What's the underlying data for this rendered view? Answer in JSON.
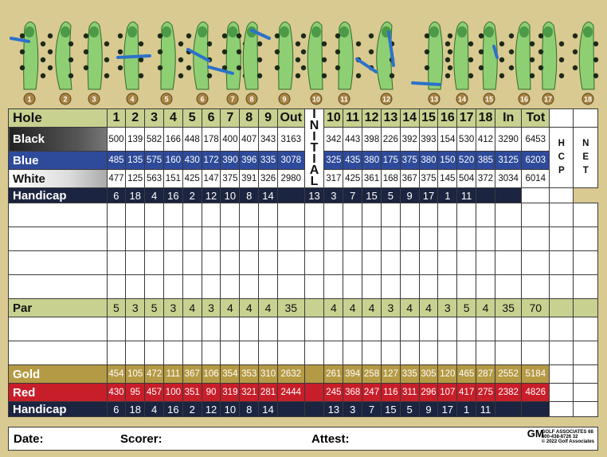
{
  "hole_map_numbers": [
    "1",
    "2",
    "3",
    "4",
    "5",
    "6",
    "7",
    "8",
    "9",
    "10",
    "11",
    "12",
    "13",
    "14",
    "15",
    "16",
    "17",
    "18"
  ],
  "header": {
    "label": "Hole",
    "holes_front": [
      "1",
      "2",
      "3",
      "4",
      "5",
      "6",
      "7",
      "8",
      "9"
    ],
    "out": "Out",
    "holes_back": [
      "10",
      "11",
      "12",
      "13",
      "14",
      "15",
      "16",
      "17",
      "18"
    ],
    "in": "In",
    "tot": "Tot"
  },
  "initial_label": [
    "I",
    "N",
    "I",
    "T",
    "I",
    "A",
    "L"
  ],
  "hcp_col_label": [
    "H",
    "C",
    "P"
  ],
  "net_col_label": [
    "N",
    "E",
    "T"
  ],
  "black": {
    "label": "Black",
    "front": [
      "500",
      "139",
      "582",
      "166",
      "448",
      "178",
      "400",
      "407",
      "343"
    ],
    "out": "3163",
    "back": [
      "342",
      "443",
      "398",
      "226",
      "392",
      "393",
      "154",
      "530",
      "412"
    ],
    "in": "3290",
    "tot": "6453"
  },
  "blue": {
    "label": "Blue",
    "front": [
      "485",
      "135",
      "575",
      "160",
      "430",
      "172",
      "390",
      "396",
      "335"
    ],
    "out": "3078",
    "back": [
      "325",
      "435",
      "380",
      "175",
      "375",
      "380",
      "150",
      "520",
      "385"
    ],
    "in": "3125",
    "tot": "6203"
  },
  "white": {
    "label": "White",
    "front": [
      "477",
      "125",
      "563",
      "151",
      "425",
      "147",
      "375",
      "391",
      "326"
    ],
    "out": "2980",
    "back": [
      "317",
      "425",
      "361",
      "168",
      "367",
      "375",
      "145",
      "504",
      "372"
    ],
    "in": "3034",
    "tot": "6014"
  },
  "handicap_top": {
    "label": "Handicap",
    "front": [
      "6",
      "18",
      "4",
      "16",
      "2",
      "12",
      "10",
      "8",
      "14"
    ],
    "back": [
      "13",
      "3",
      "7",
      "15",
      "5",
      "9",
      "17",
      "1",
      "11"
    ]
  },
  "par": {
    "label": "Par",
    "front": [
      "5",
      "3",
      "5",
      "3",
      "4",
      "3",
      "4",
      "4",
      "4"
    ],
    "out": "35",
    "back": [
      "4",
      "4",
      "4",
      "3",
      "4",
      "4",
      "3",
      "5",
      "4"
    ],
    "in": "35",
    "tot": "70"
  },
  "gold": {
    "label": "Gold",
    "front": [
      "454",
      "105",
      "472",
      "111",
      "367",
      "106",
      "354",
      "353",
      "310"
    ],
    "out": "2632",
    "back": [
      "261",
      "394",
      "258",
      "127",
      "335",
      "305",
      "120",
      "465",
      "287"
    ],
    "in": "2552",
    "tot": "5184"
  },
  "red": {
    "label": "Red",
    "front": [
      "430",
      "95",
      "457",
      "100",
      "351",
      "90",
      "319",
      "321",
      "281"
    ],
    "out": "2444",
    "back": [
      "245",
      "368",
      "247",
      "116",
      "311",
      "296",
      "107",
      "417",
      "275"
    ],
    "in": "2382",
    "tot": "4826"
  },
  "handicap_bottom": {
    "label": "Handicap",
    "front": [
      "6",
      "18",
      "4",
      "16",
      "2",
      "12",
      "10",
      "8",
      "14"
    ],
    "back": [
      "13",
      "3",
      "7",
      "15",
      "5",
      "9",
      "17",
      "1",
      "11"
    ]
  },
  "footer": {
    "date": "Date:",
    "scorer": "Scorer:",
    "attest": "Attest:"
  },
  "logo": {
    "mark": "GM",
    "line1": "GOLF ASSOCIATES 68",
    "line2": "800-438-8726 32",
    "line3": "© 2022 Golf Associates"
  },
  "colors": {
    "green_row": "#c8d18f",
    "blue_row": "#2e4a9a",
    "gold_row": "#b59a45",
    "red_row": "#c81e2a",
    "handicap_row": "#1b2440",
    "background": "#d9ca92"
  }
}
